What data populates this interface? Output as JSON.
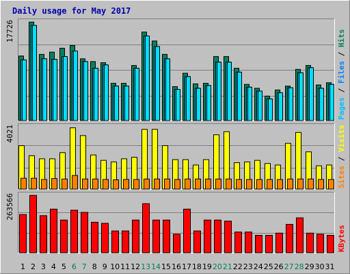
{
  "chart_data": {
    "type": "bar",
    "title": "Daily usage for May 2017",
    "x": [
      "1",
      "2",
      "3",
      "4",
      "5",
      "6",
      "7",
      "8",
      "9",
      "10",
      "11",
      "12",
      "13",
      "14",
      "15",
      "16",
      "17",
      "18",
      "19",
      "20",
      "21",
      "22",
      "23",
      "24",
      "25",
      "26",
      "27",
      "28",
      "29",
      "30",
      "31"
    ],
    "weekend_days": [
      "6",
      "7",
      "13",
      "14",
      "20",
      "21",
      "27",
      "28"
    ],
    "colors": {
      "hits": "#00805c",
      "files": "#00c0ff",
      "pages": "#00e0ff",
      "visits": "#ffff00",
      "sites": "#ff8000",
      "kbytes": "#ff0000",
      "background": "#c0c0c0",
      "title": "#0000b0",
      "weekend_tick": "#00805c",
      "weekday_tick": "#000000"
    },
    "panels": [
      {
        "name": "pages-files-hits",
        "ymax_label": "17726",
        "ymax": 17726,
        "legend": [
          {
            "text": "Pages",
            "color": "#00c0ff"
          },
          {
            "text": " / ",
            "color": "#000000"
          },
          {
            "text": "Files",
            "color": "#0080ff"
          },
          {
            "text": " / ",
            "color": "#000000"
          },
          {
            "text": "Hits",
            "color": "#00805c"
          }
        ],
        "series": [
          {
            "name": "Hits",
            "color": "#00805c",
            "values": [
              11600,
              17700,
              11900,
              12300,
              13000,
              13500,
              11100,
              10600,
              10400,
              6700,
              6700,
              9900,
              15900,
              14300,
              11900,
              6100,
              8500,
              6600,
              6700,
              11500,
              11500,
              9400,
              6500,
              5800,
              4400,
              5500,
              6200,
              9200,
              9900,
              6400,
              6800
            ]
          },
          {
            "name": "Files",
            "color": "#00c0ff",
            "values": [
              10900,
              17100,
              11100,
              11000,
              11500,
              12500,
              10600,
              9400,
              10000,
              6200,
              6200,
              9400,
              15200,
              13300,
              11100,
              5600,
              7900,
              5800,
              6300,
              10500,
              10500,
              8700,
              6000,
              5300,
              3900,
              5000,
              5900,
              8600,
              9500,
              5800,
              6500
            ]
          },
          {
            "name": "Pages",
            "color": "#00e0ff",
            "values": [
              10900,
              17100,
              11100,
              11000,
              11500,
              12500,
              10600,
              9400,
              10000,
              6200,
              6200,
              9400,
              15200,
              13300,
              11100,
              5600,
              7900,
              5800,
              6300,
              10500,
              10500,
              8700,
              6000,
              5300,
              3900,
              5000,
              5900,
              8600,
              9500,
              5800,
              6500
            ]
          }
        ]
      },
      {
        "name": "visits-sites",
        "ymax_label": "4021",
        "ymax": 4021,
        "legend": [
          {
            "text": "Sites",
            "color": "#ff8000"
          },
          {
            "text": " / ",
            "color": "#000000"
          },
          {
            "text": "Visits",
            "color": "#ffff00"
          }
        ],
        "series": [
          {
            "name": "Visits",
            "color": "#ffff00",
            "values": [
              2800,
              2150,
              1950,
              1950,
              2350,
              3950,
              3450,
              2200,
              1850,
              1750,
              1950,
              2050,
              3850,
              3850,
              2800,
              1900,
              1900,
              1550,
              1900,
              3500,
              3700,
              1700,
              1750,
              1850,
              1650,
              1550,
              2950,
              3650,
              2400,
              1500,
              1550
            ]
          },
          {
            "name": "Sites",
            "color": "#ff8000",
            "values": [
              700,
              700,
              620,
              680,
              650,
              880,
              650,
              650,
              620,
              600,
              620,
              620,
              650,
              650,
              650,
              620,
              650,
              650,
              650,
              650,
              650,
              620,
              620,
              620,
              620,
              620,
              650,
              650,
              650,
              620,
              620
            ]
          }
        ]
      },
      {
        "name": "kbytes",
        "ymax_label": "263566",
        "ymax": 263566,
        "legend": [
          {
            "text": "KBytes",
            "color": "#ff0000"
          }
        ],
        "series": [
          {
            "name": "KBytes",
            "color": "#ff0000",
            "values": [
              175000,
              263000,
              170000,
              200000,
              150000,
              195000,
              185000,
              140000,
              135000,
              100000,
              100000,
              150000,
              225000,
              150000,
              150000,
              85000,
              200000,
              100000,
              150000,
              150000,
              145000,
              95000,
              95000,
              80000,
              80000,
              90000,
              130000,
              160000,
              90000,
              85000,
              80000
            ]
          }
        ]
      }
    ]
  }
}
